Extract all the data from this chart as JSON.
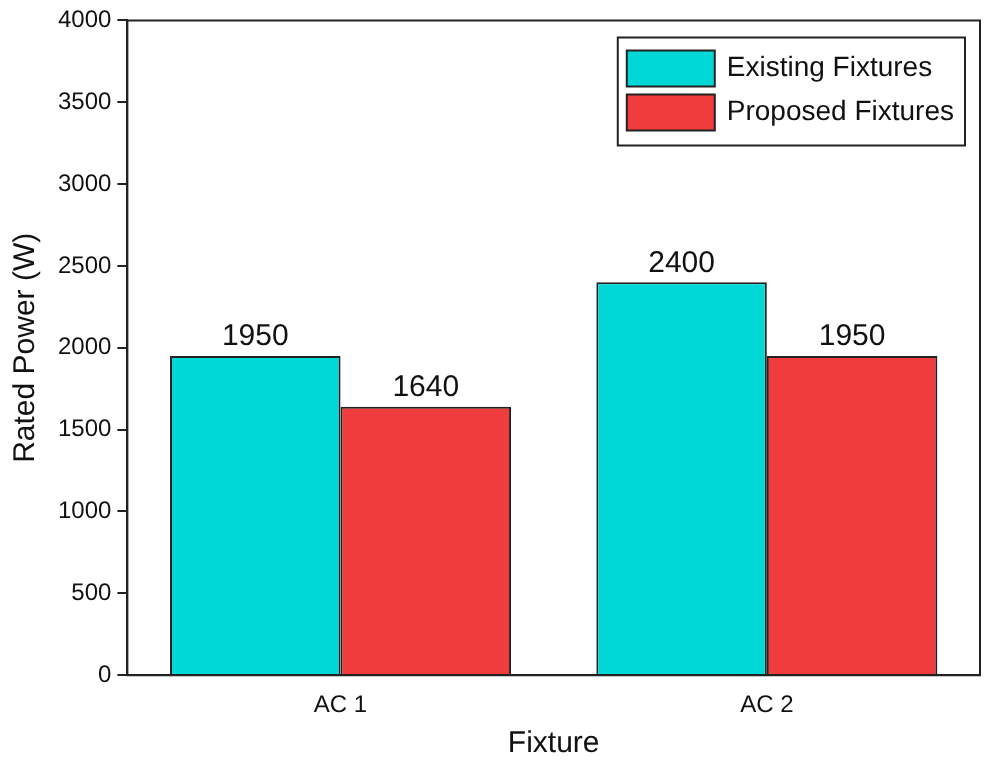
{
  "chart_data": {
    "type": "bar",
    "xlabel": "Fixture",
    "ylabel": "Rated Power (W)",
    "categories": [
      "AC 1",
      "AC 2"
    ],
    "series": [
      {
        "name": "Existing Fixtures",
        "color": "#00d8d8",
        "values": [
          1950,
          2400
        ]
      },
      {
        "name": "Proposed Fixtures",
        "color": "#f03c3c",
        "values": [
          1640,
          1950
        ]
      }
    ],
    "ylim": [
      0,
      4000
    ],
    "yticks": [
      0,
      500,
      1000,
      1500,
      2000,
      2500,
      3000,
      3500,
      4000
    ],
    "grid": false,
    "legend": "top right",
    "data_labels": true
  }
}
